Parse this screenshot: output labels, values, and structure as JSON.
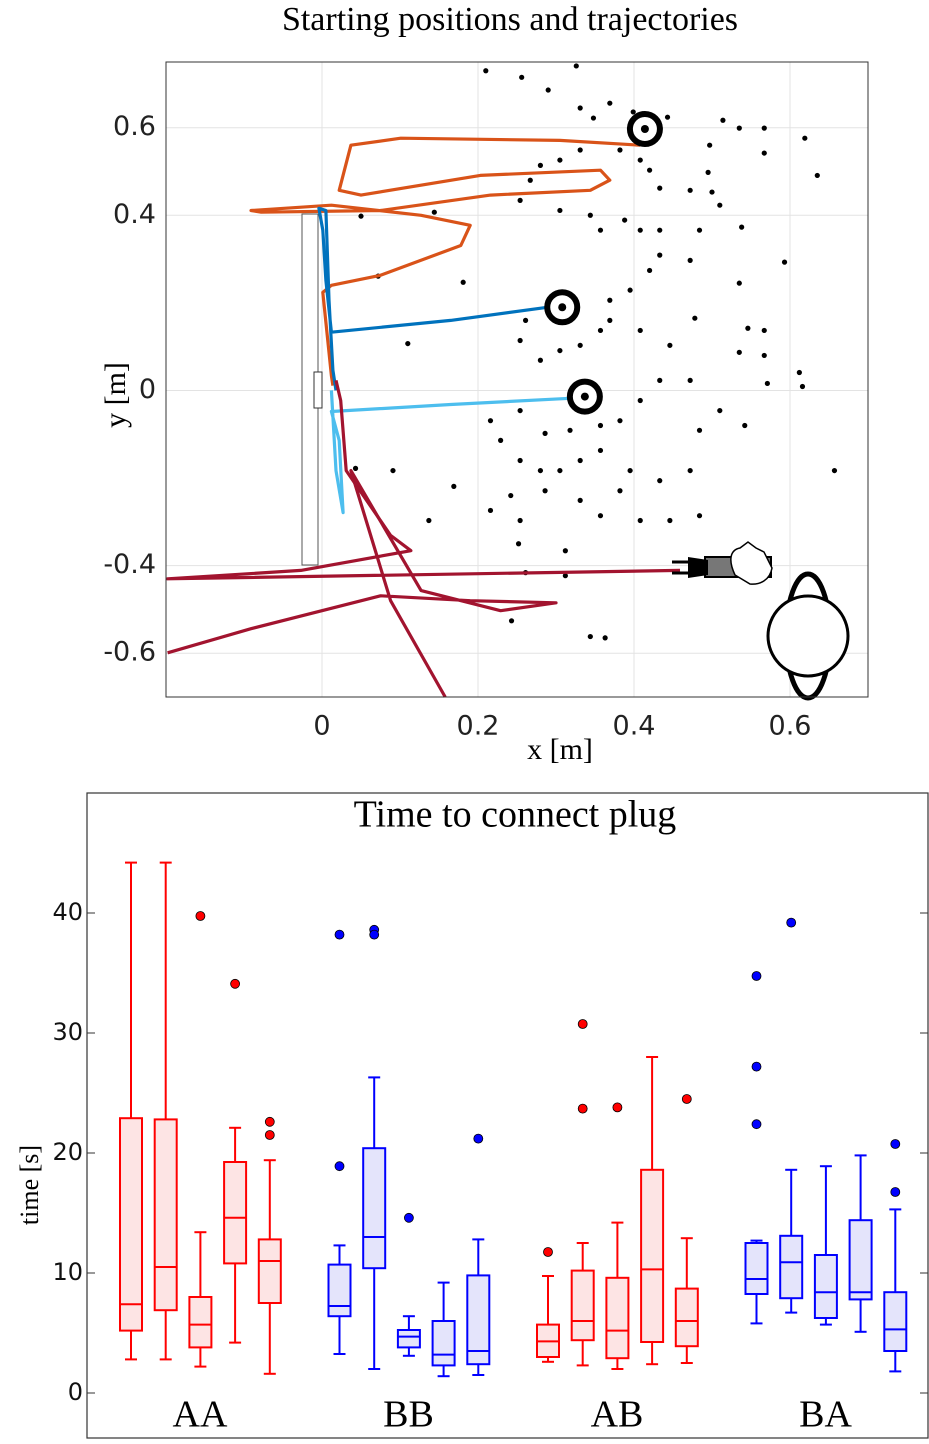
{
  "chart_data": [
    {
      "type": "scatter",
      "title": "Starting positions and trajectories",
      "xlabel": "x [m]",
      "ylabel": "y [m]",
      "xlim": [
        -0.2,
        0.7
      ],
      "ylim": [
        -0.7,
        0.75
      ],
      "xticks": [
        0,
        0.2,
        0.4,
        0.6
      ],
      "yticks": [
        0.6,
        0.4,
        0,
        -0.4,
        -0.6
      ],
      "grid": true,
      "points": {
        "color": "#000000",
        "x": [
          0.21,
          0.256,
          0.326,
          0.29,
          0.331,
          0.369,
          0.348,
          0.399,
          0.443,
          0.514,
          0.535,
          0.567,
          0.619,
          0.635,
          0.567,
          0.497,
          0.495,
          0.472,
          0.5,
          0.51,
          0.433,
          0.42,
          0.408,
          0.382,
          0.331,
          0.305,
          0.28,
          0.267,
          0.254,
          0.305,
          0.344,
          0.357,
          0.388,
          0.408,
          0.433,
          0.484,
          0.538,
          0.593,
          0.535,
          0.472,
          0.433,
          0.42,
          0.395,
          0.369,
          0.357,
          0.331,
          0.305,
          0.28,
          0.254,
          0.261,
          0.369,
          0.408,
          0.446,
          0.478,
          0.546,
          0.567,
          0.567,
          0.535,
          0.472,
          0.433,
          0.408,
          0.382,
          0.357,
          0.318,
          0.286,
          0.254,
          0.216,
          0.229,
          0.254,
          0.28,
          0.305,
          0.331,
          0.357,
          0.395,
          0.433,
          0.472,
          0.484,
          0.51,
          0.542,
          0.571,
          0.612,
          0.616,
          0.657,
          0.382,
          0.331,
          0.286,
          0.242,
          0.216,
          0.254,
          0.357,
          0.408,
          0.446,
          0.484,
          0.312,
          0.252,
          0.261,
          0.312,
          0.344,
          0.363,
          0.243,
          0.137,
          0.169,
          0.091,
          0.043,
          0.072,
          0.11,
          0.144,
          0.181,
          0.05
        ],
        "y": [
          0.73,
          0.715,
          0.741,
          0.686,
          0.645,
          0.656,
          0.622,
          0.636,
          0.624,
          0.617,
          0.599,
          0.599,
          0.576,
          0.491,
          0.542,
          0.56,
          0.498,
          0.457,
          0.453,
          0.423,
          0.462,
          0.503,
          0.526,
          0.549,
          0.549,
          0.526,
          0.514,
          0.48,
          0.434,
          0.411,
          0.4,
          0.366,
          0.389,
          0.366,
          0.366,
          0.366,
          0.373,
          0.293,
          0.245,
          0.297,
          0.309,
          0.274,
          0.229,
          0.206,
          0.137,
          0.103,
          0.091,
          0.069,
          0.114,
          0.16,
          0.16,
          0.137,
          0.103,
          0.165,
          0.142,
          0.137,
          0.08,
          0.087,
          0.023,
          0.023,
          -0.023,
          -0.069,
          -0.08,
          -0.091,
          -0.098,
          -0.046,
          -0.069,
          -0.114,
          -0.16,
          -0.183,
          -0.183,
          -0.16,
          -0.137,
          -0.183,
          -0.206,
          -0.183,
          -0.091,
          -0.046,
          -0.08,
          0.016,
          0.041,
          0.009,
          -0.183,
          -0.229,
          -0.251,
          -0.229,
          -0.24,
          -0.274,
          -0.297,
          -0.286,
          -0.297,
          -0.297,
          -0.286,
          -0.366,
          -0.35,
          -0.416,
          -0.423,
          -0.562,
          -0.565,
          -0.526,
          -0.297,
          -0.219,
          -0.183,
          -0.178,
          0.261,
          0.107,
          0.407,
          0.247,
          0.398
        ]
      },
      "targets": {
        "x": [
          0.414,
          0.308,
          0.337
        ],
        "y": [
          0.597,
          0.19,
          -0.014
        ]
      },
      "trajectories": [
        {
          "color": "#d95319",
          "x": [
            0.408,
            0.305,
            0.101,
            0.037,
            0.022,
            0.05,
            0.203,
            0.357,
            0.369,
            0.344,
            0.216,
            0.075,
            -0.078,
            -0.091,
            0.012,
            0.127,
            0.19,
            0.178,
            0.075,
            0.012,
            0.001,
            0.012,
            0.014
          ],
          "y": [
            0.56,
            0.571,
            0.576,
            0.56,
            0.457,
            0.446,
            0.491,
            0.503,
            0.48,
            0.457,
            0.446,
            0.411,
            0.407,
            0.411,
            0.423,
            0.4,
            0.377,
            0.331,
            0.263,
            0.24,
            0.224,
            0.034,
            0.011
          ]
        },
        {
          "color": "#0072bd",
          "x": [
            0.29,
            0.165,
            0.012,
            0.005,
            0.001,
            -0.004,
            0.005,
            0.009,
            0.014,
            0.018
          ],
          "y": [
            0.19,
            0.16,
            0.133,
            0.251,
            0.366,
            0.416,
            0.411,
            0.206,
            0.046,
            0
          ]
        },
        {
          "color": "#4dbeee",
          "x": [
            0.318,
            0.165,
            0.012,
            0.022,
            0.027,
            0.018,
            0.012
          ],
          "y": [
            -0.018,
            -0.032,
            -0.048,
            -0.114,
            -0.279,
            -0.183,
            0
          ]
        },
        {
          "color": "#a2142f",
          "x": [
            0.459,
            -0.198,
            -0.027,
            0.114,
            0.088,
            0.031,
            0.024,
            0.018
          ],
          "y": [
            -0.411,
            -0.43,
            -0.411,
            -0.366,
            -0.331,
            -0.183,
            -0.023,
            0.023
          ]
        },
        {
          "color": "#a2142f",
          "x": [
            -0.198,
            -0.091,
            0.075,
            0.19,
            0.3,
            0.229,
            0.127,
            0.037,
            0.088,
            0.158
          ],
          "y": [
            -0.599,
            -0.544,
            -0.469,
            -0.48,
            -0.485,
            -0.503,
            -0.457,
            -0.183,
            -0.48,
            -0.7
          ]
        }
      ]
    },
    {
      "type": "box",
      "title": "Time to connect plug",
      "ylabel": "time [s]",
      "ylim": [
        -3.75,
        50
      ],
      "yticks": [
        0,
        10,
        20,
        30,
        40
      ],
      "groups": [
        {
          "name": "AA",
          "color": "#ff0000",
          "fill": "#fde4e4",
          "boxes": [
            {
              "min": 2.8,
              "q1": 5.2,
              "median": 7.4,
              "q3": 22.9,
              "max": 44.2,
              "outliers": []
            },
            {
              "min": 2.8,
              "q1": 6.9,
              "median": 10.5,
              "q3": 22.8,
              "max": 44.2,
              "outliers": []
            },
            {
              "min": 2.2,
              "q1": 3.8,
              "median": 5.7,
              "q3": 8.0,
              "max": 13.4,
              "outliers": [
                39.75
              ]
            },
            {
              "min": 4.2,
              "q1": 10.8,
              "median": 14.6,
              "q3": 19.25,
              "max": 22.1,
              "outliers": [
                34.1
              ]
            },
            {
              "min": 1.6,
              "q1": 7.5,
              "median": 11.0,
              "q3": 12.8,
              "max": 19.4,
              "outliers": [
                22.6,
                21.5
              ]
            }
          ]
        },
        {
          "name": "BB",
          "color": "#0000ff",
          "fill": "#e4e4fb",
          "boxes": [
            {
              "min": 3.25,
              "q1": 6.4,
              "median": 7.25,
              "q3": 10.7,
              "max": 12.3,
              "outliers": [
                38.2,
                18.9
              ]
            },
            {
              "min": 2.0,
              "q1": 10.4,
              "median": 13.0,
              "q3": 20.4,
              "max": 26.3,
              "outliers": [
                38.6,
                38.2
              ]
            },
            {
              "min": 3.1,
              "q1": 3.8,
              "median": 4.7,
              "q3": 5.25,
              "max": 6.4,
              "outliers": [
                14.6
              ]
            },
            {
              "min": 1.4,
              "q1": 2.3,
              "median": 3.2,
              "q3": 6.0,
              "max": 9.2,
              "outliers": []
            },
            {
              "min": 1.5,
              "q1": 2.4,
              "median": 3.5,
              "q3": 9.8,
              "max": 12.8,
              "outliers": [
                21.2
              ]
            }
          ]
        },
        {
          "name": "AB",
          "color": "#ff0000",
          "fill": "#fde4e4",
          "boxes": [
            {
              "min": 2.6,
              "q1": 3.0,
              "median": 4.3,
              "q3": 5.7,
              "max": 9.75,
              "outliers": [
                11.75
              ]
            },
            {
              "min": 2.3,
              "q1": 4.4,
              "median": 6.0,
              "q3": 10.2,
              "max": 12.5,
              "outliers": [
                30.75,
                23.7
              ]
            },
            {
              "min": 2.0,
              "q1": 2.9,
              "median": 5.2,
              "q3": 9.6,
              "max": 14.2,
              "outliers": [
                23.8
              ]
            },
            {
              "min": 2.4,
              "q1": 4.25,
              "median": 10.3,
              "q3": 18.6,
              "max": 28.0,
              "outliers": []
            },
            {
              "min": 2.5,
              "q1": 3.9,
              "median": 6.0,
              "q3": 8.7,
              "max": 12.9,
              "outliers": [
                24.5
              ]
            }
          ]
        },
        {
          "name": "BA",
          "color": "#0000ff",
          "fill": "#e4e4fb",
          "boxes": [
            {
              "min": 5.8,
              "q1": 8.25,
              "median": 9.5,
              "q3": 12.5,
              "max": 12.7,
              "outliers": [
                34.75,
                27.2,
                22.4
              ]
            },
            {
              "min": 6.7,
              "q1": 7.9,
              "median": 10.9,
              "q3": 13.1,
              "max": 18.6,
              "outliers": [
                39.2
              ]
            },
            {
              "min": 5.7,
              "q1": 6.25,
              "median": 8.4,
              "q3": 11.5,
              "max": 18.9,
              "outliers": []
            },
            {
              "min": 5.1,
              "q1": 7.8,
              "median": 8.4,
              "q3": 14.4,
              "max": 19.8,
              "outliers": []
            },
            {
              "min": 1.8,
              "q1": 3.5,
              "median": 5.3,
              "q3": 8.4,
              "max": 15.3,
              "outliers": [
                20.75,
                16.75
              ]
            }
          ]
        }
      ]
    }
  ]
}
